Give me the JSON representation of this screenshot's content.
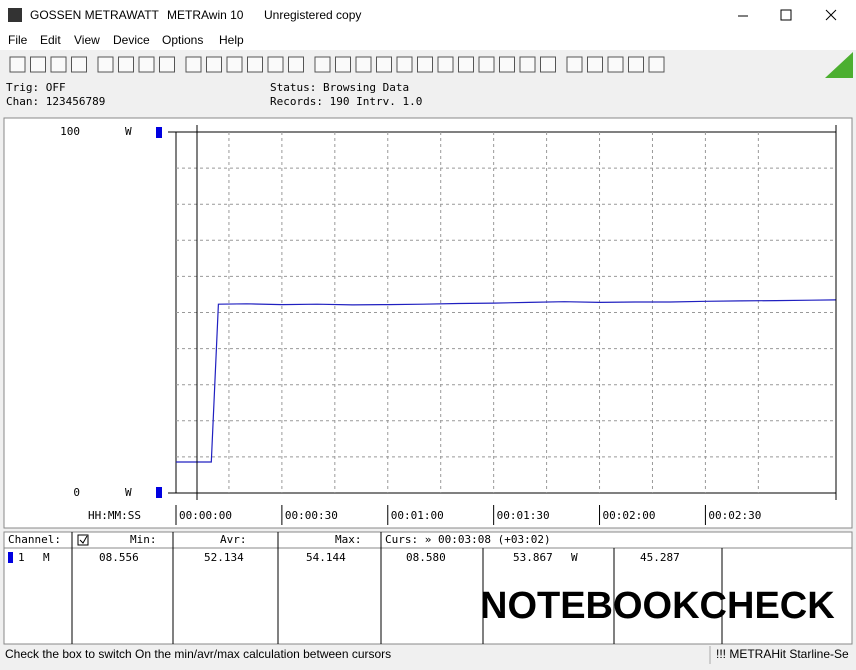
{
  "window": {
    "app": "GOSSEN METRAWATT",
    "title": "METRAwin 10",
    "license": "Unregistered copy"
  },
  "menu": [
    "File",
    "Edit",
    "View",
    "Device",
    "Options",
    "Help"
  ],
  "info": {
    "trig": "Trig: OFF",
    "chan": "Chan:  123456789",
    "status": "Status:  Browsing Data",
    "records": "Records: 190  Intrv. 1.0"
  },
  "chart_data": {
    "type": "line",
    "x_axis_label": "HH:MM:SS",
    "y_unit": "W",
    "xlim": [
      0,
      187
    ],
    "xticks": [
      {
        "value": 0,
        "label": "00:00:00"
      },
      {
        "value": 30,
        "label": "00:00:30"
      },
      {
        "value": 60,
        "label": "00:01:00"
      },
      {
        "value": 90,
        "label": "00:01:30"
      },
      {
        "value": 120,
        "label": "00:02:00"
      },
      {
        "value": 150,
        "label": "00:02:30"
      }
    ],
    "ylim": [
      0,
      100
    ],
    "yticks": [
      0,
      100
    ],
    "grid": true,
    "color": "#2020c0",
    "x": [
      0,
      10,
      12,
      20,
      30,
      40,
      50,
      60,
      70,
      80,
      90,
      100,
      110,
      120,
      130,
      140,
      150,
      160,
      170,
      180,
      187
    ],
    "values": [
      8.6,
      8.6,
      52.3,
      52.4,
      52.2,
      52.3,
      52.1,
      52.2,
      52.3,
      52.5,
      52.6,
      52.8,
      53.0,
      52.8,
      52.9,
      52.9,
      53.1,
      53.2,
      53.3,
      53.4,
      53.5
    ]
  },
  "table": {
    "header": [
      "Channel:",
      "Min:",
      "Avr:",
      "Max:",
      "Curs: » 00:03:08 (+03:02)"
    ],
    "row": [
      "1",
      "M",
      "08.556",
      "52.134",
      "54.144",
      "08.580",
      "53.867",
      "W",
      "45.287"
    ]
  },
  "watermark": "NOTEBOOKCHECK",
  "status_bar": [
    "Check the box to switch On the min/avr/max calculation between cursors",
    "!!! METRAHit Starline-Se"
  ]
}
